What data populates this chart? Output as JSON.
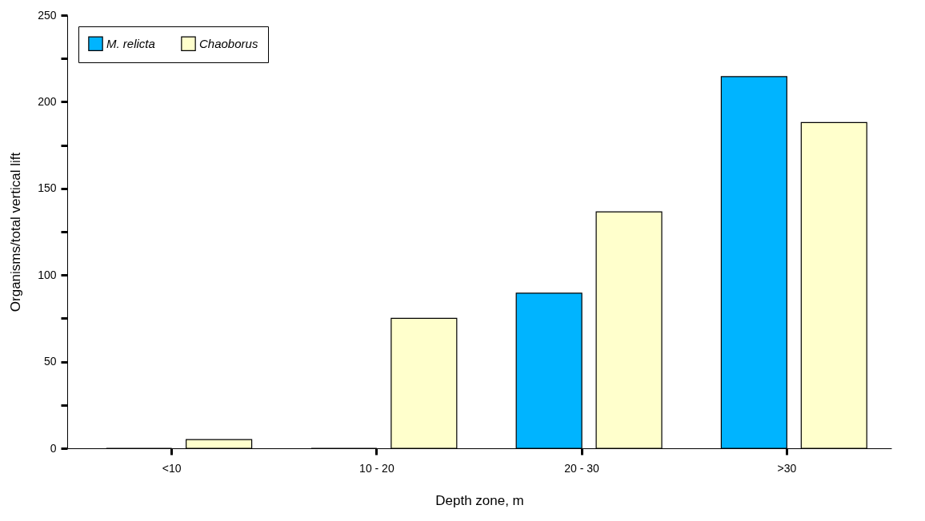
{
  "chart_data": {
    "type": "bar",
    "xlabel": "Depth zone, m",
    "ylabel": "Organisms/total vertical lift",
    "categories": [
      "<10",
      "10 - 20",
      "20 - 30",
      ">30"
    ],
    "series": [
      {
        "name": "M. relicta",
        "color": "#00b4ff",
        "values": [
          0,
          0,
          89.5,
          214.5
        ]
      },
      {
        "name": "Chaoborus",
        "color": "#ffffcc",
        "values": [
          5,
          75,
          136.5,
          188
        ]
      }
    ],
    "ylim": [
      0,
      250
    ],
    "yticks": [
      0,
      {
        "value": 25,
        "label": null
      },
      50,
      {
        "value": 75,
        "label": null
      },
      100,
      {
        "value": 125,
        "label": null
      },
      150,
      {
        "value": 175,
        "label": null
      },
      200,
      {
        "value": 225,
        "label": null
      },
      250
    ],
    "grid": false,
    "legend": "top left"
  }
}
